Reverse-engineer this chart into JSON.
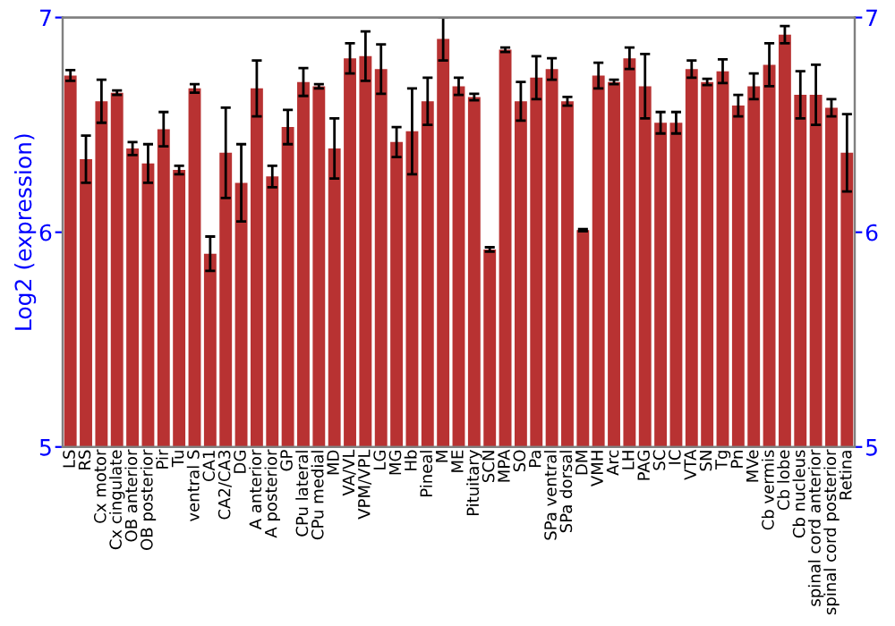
{
  "chart_data": {
    "type": "bar",
    "ylabel": "Log2 (expression)",
    "categories": [
      "LS",
      "RS",
      "Cx motor",
      "Cx cingulate",
      "OB anterior",
      "OB posterior",
      "Pir",
      "Tu",
      "ventral S",
      "CA1",
      "CA2/CA3",
      "DG",
      "A anterior",
      "A posterior",
      "GP",
      "CPu lateral",
      "CPu medial",
      "MD",
      "VA/VL",
      "VPM/VPL",
      "LG",
      "MG",
      "Hb",
      "Pineal",
      "M",
      "ME",
      "Pituitary",
      "SCN",
      "MPA",
      "SO",
      "Pa",
      "SPa ventral",
      "SPa dorsal",
      "DM",
      "VMH",
      "Arc",
      "LH",
      "PAG",
      "SC",
      "IC",
      "VTA",
      "SN",
      "Tg",
      "Pn",
      "MVe",
      "Cb vermis",
      "Cb lobe",
      "Cb nucleus",
      "spinal cord anterior",
      "spinal cord posterior",
      "Retina"
    ],
    "series": [
      {
        "color": "#b83232",
        "values": [
          6.73,
          6.34,
          6.61,
          6.65,
          6.39,
          6.32,
          6.48,
          6.29,
          6.67,
          5.9,
          6.37,
          6.23,
          6.67,
          6.26,
          6.49,
          6.7,
          6.68,
          6.39,
          6.81,
          6.82,
          6.76,
          6.42,
          6.47,
          6.61,
          6.9,
          6.68,
          6.63,
          5.92,
          6.85,
          6.61,
          6.72,
          6.76,
          6.61,
          6.01,
          6.73,
          6.7,
          6.81,
          6.68,
          6.51,
          6.51,
          6.76,
          6.7,
          6.75,
          6.59,
          6.68,
          6.78,
          6.92,
          6.64,
          6.64,
          6.58,
          6.37
        ],
        "errors": [
          0.025,
          0.11,
          0.1,
          0.01,
          0.03,
          0.09,
          0.08,
          0.02,
          0.02,
          0.08,
          0.21,
          0.18,
          0.13,
          0.05,
          0.08,
          0.065,
          0.01,
          0.14,
          0.07,
          0.115,
          0.115,
          0.07,
          0.2,
          0.11,
          0.1,
          0.04,
          0.015,
          0.01,
          0.01,
          0.09,
          0.1,
          0.05,
          0.02,
          0.005,
          0.06,
          0.01,
          0.05,
          0.15,
          0.05,
          0.05,
          0.04,
          0.015,
          0.055,
          0.05,
          0.06,
          0.1,
          0.04,
          0.11,
          0.14,
          0.04,
          0.18
        ]
      }
    ],
    "ylim": [
      5,
      7
    ],
    "yticks": [
      5,
      6,
      7
    ],
    "y2lim": [
      5,
      7
    ],
    "y2ticks": [
      5,
      6,
      7
    ],
    "grid": false,
    "legend": false
  }
}
